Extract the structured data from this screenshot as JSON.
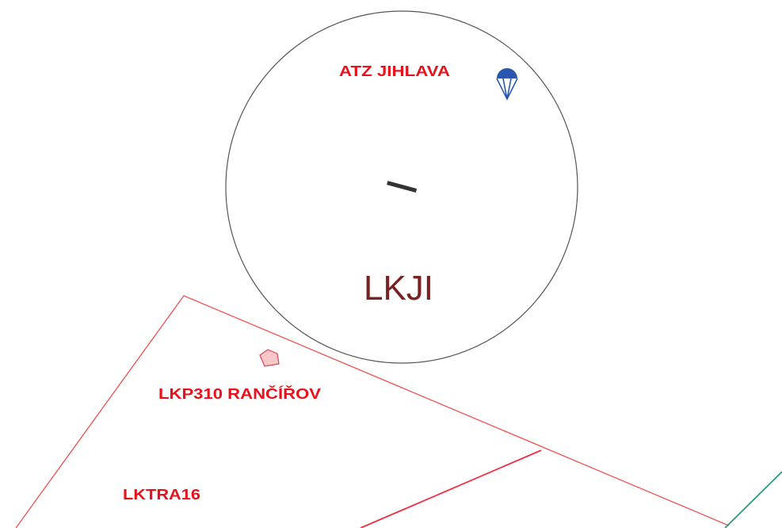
{
  "labels": {
    "atz": "ATZ JIHLAVA",
    "airport": "LKJI",
    "prohibited": "LKP310 RANČÍŘOV",
    "tra": "LKTRA16"
  }
}
